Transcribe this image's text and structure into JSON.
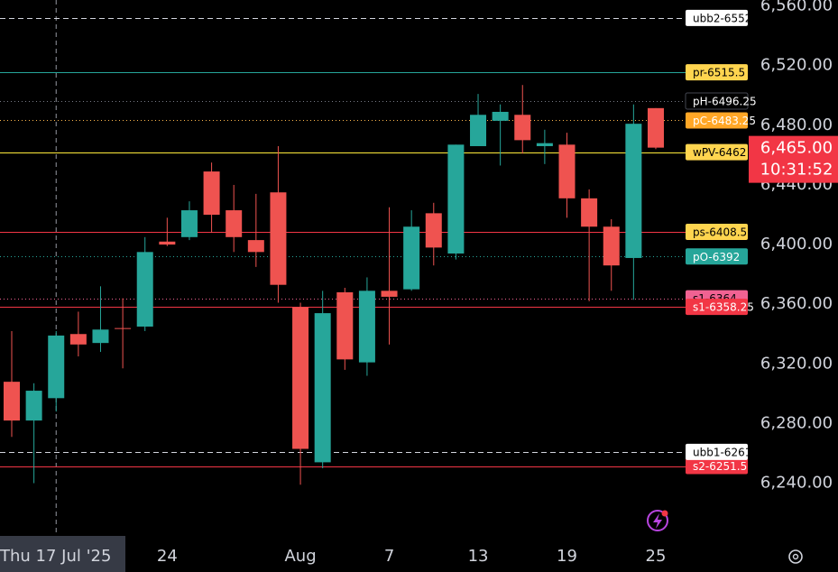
{
  "chart_data": {
    "type": "candlestick",
    "categories": [
      null,
      null,
      "Thu 17 Jul '25",
      null,
      null,
      null,
      null,
      "24",
      null,
      null,
      null,
      null,
      null,
      "Aug",
      null,
      null,
      null,
      "7",
      null,
      null,
      null,
      "13",
      null,
      null,
      null,
      "19",
      null,
      null,
      null,
      "25"
    ],
    "open": [
      6308,
      6282,
      6297,
      6340,
      6334,
      6344,
      6345,
      6402,
      6405,
      6449,
      6423,
      6403,
      6435,
      6358,
      6254,
      6368,
      6321,
      6369,
      6370,
      6421,
      6394,
      6466,
      6483,
      6487,
      6466,
      6467,
      6431,
      6412,
      6391,
      6491.5
    ],
    "high": [
      6342,
      6307,
      6342,
      6355,
      6372,
      6364,
      6405,
      6418,
      6429,
      6455,
      6440,
      6434,
      6466,
      6361,
      6369,
      6371,
      6378,
      6425,
      6423,
      6428,
      6467,
      6501,
      6494,
      6507,
      6477,
      6475,
      6437,
      6417,
      6494,
      6491.5
    ],
    "low": [
      6271,
      6240,
      6288,
      6325,
      6328,
      6317,
      6342,
      6399,
      6403,
      6408,
      6395,
      6385,
      6361,
      6239,
      6250,
      6316,
      6312,
      6333,
      6369,
      6386,
      6390,
      6466,
      6453,
      6461,
      6454,
      6418,
      6362,
      6369,
      6363,
      6464
    ],
    "close": [
      6282,
      6302,
      6339,
      6333,
      6343,
      6343.5,
      6395,
      6400,
      6423,
      6420,
      6405,
      6395,
      6373,
      6263,
      6354,
      6323,
      6369,
      6365,
      6412,
      6398,
      6467,
      6487,
      6489,
      6470,
      6468,
      6431,
      6412,
      6386,
      6481,
      6465
    ],
    "up_color": "#26a69a",
    "down_color": "#ef5350",
    "ylim": [
      6201,
      6564
    ],
    "yticks": [
      {
        "value": 6240,
        "label": "6,240.00"
      },
      {
        "value": 6280,
        "label": "6,280.00"
      },
      {
        "value": 6320,
        "label": "6,320.00"
      },
      {
        "value": 6360,
        "label": "6,360.00"
      },
      {
        "value": 6400,
        "label": "6,400.00"
      },
      {
        "value": 6440,
        "label": "6,440.00"
      },
      {
        "value": 6480,
        "label": "6,480.00"
      },
      {
        "value": 6520,
        "label": "6,520.00"
      },
      {
        "value": 6560,
        "label": "6,560.00"
      }
    ],
    "crosshair_category": 2,
    "levels": [
      {
        "label": "s1-6364",
        "value": 6364,
        "style": "dotted",
        "color": "#f06292",
        "bg": "#f06292",
        "text_color": "#000000"
      },
      {
        "label": "s2-6251.5",
        "value": 6251.5,
        "style": "solid",
        "color": "#f23645",
        "bg": "#f23645",
        "text_color": "#ffffff"
      },
      {
        "label": "ubb2-6552.",
        "value": 6552,
        "style": "dashed",
        "color": "#d1d4dc",
        "bg": "#ffffff",
        "text_color": "#000000"
      },
      {
        "label": "pr-6515.5",
        "value": 6515.5,
        "style": "solid",
        "color": "#26a69a",
        "bg": "#ffd54f",
        "text_color": "#000000"
      },
      {
        "label": "pH-6496.25",
        "value": 6496.25,
        "style": "dotted",
        "color": "#787b86",
        "bg": "#000000",
        "text_color": "#ffffff"
      },
      {
        "label": "pC-6483.25",
        "value": 6483.25,
        "style": "dotted",
        "color": "#ffb74d",
        "bg": "#ffa726",
        "text_color": "#ffffff"
      },
      {
        "label": "wPV-6462",
        "value": 6462,
        "style": "solid",
        "color": "#ffeb3b",
        "bg": "#ffd54f",
        "text_color": "#000000"
      },
      {
        "label": "ps-6408.5",
        "value": 6408.5,
        "style": "solid",
        "color": "#f23645",
        "bg": "#ffd54f",
        "text_color": "#000000"
      },
      {
        "label": "pO-6392",
        "value": 6392,
        "style": "dotted",
        "color": "#26a69a",
        "bg": "#26a69a",
        "text_color": "#ffffff"
      },
      {
        "label": "s1-6358.25",
        "value": 6358.25,
        "style": "solid",
        "color": "#f23645",
        "bg": "#f23645",
        "text_color": "#ffffff"
      },
      {
        "label": "ubb1-6261.",
        "value": 6261,
        "style": "dashed",
        "color": "#d1d4dc",
        "bg": "#ffffff",
        "text_color": "#000000"
      }
    ],
    "last_price": {
      "value": 6465,
      "label": "6,465.00",
      "color": "#f23645"
    },
    "countdown": "10:31:52"
  }
}
